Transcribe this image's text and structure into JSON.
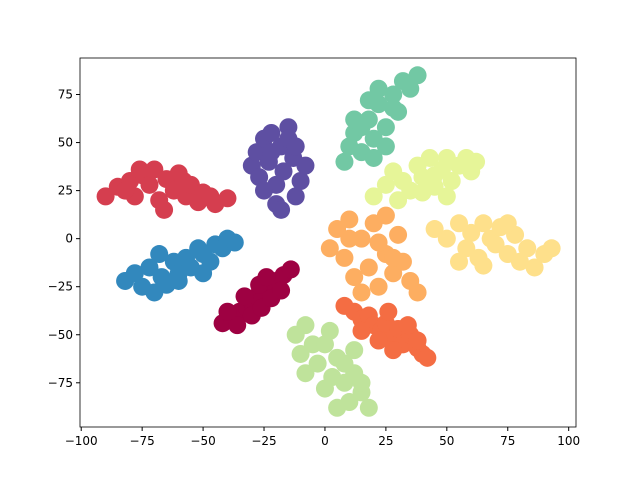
{
  "chart_data": {
    "type": "scatter",
    "xlim": [
      -100.5,
      103
    ],
    "ylim": [
      -98,
      94
    ],
    "xticks": [
      {
        "value": -100,
        "label": "−100"
      },
      {
        "value": -75,
        "label": "−75"
      },
      {
        "value": -50,
        "label": "−50"
      },
      {
        "value": -25,
        "label": "−25"
      },
      0,
      25,
      50,
      75,
      100
    ],
    "yticks": [
      {
        "value": -75,
        "label": "−75"
      },
      {
        "value": -50,
        "label": "−50"
      },
      {
        "value": -25,
        "label": "−25"
      },
      0,
      25,
      50,
      75
    ],
    "series": [
      {
        "color": "#9e0142",
        "x": [
          -42,
          -38,
          -35,
          -32,
          -30,
          -28,
          -25,
          -22,
          -20,
          -17,
          -14,
          -36,
          -30,
          -26,
          -22,
          -33,
          -27,
          -18,
          -24,
          -40
        ],
        "values": [
          -44,
          -42,
          -38,
          -36,
          -33,
          -30,
          -28,
          -25,
          -22,
          -19,
          -16,
          -45,
          -40,
          -36,
          -31,
          -30,
          -24,
          -27,
          -20,
          -38
        ]
      },
      {
        "color": "#d53e4f",
        "x": [
          -90,
          -85,
          -80,
          -78,
          -75,
          -72,
          -70,
          -68,
          -65,
          -62,
          -60,
          -57,
          -55,
          -52,
          -50,
          -47,
          -45,
          -40,
          -76,
          -66,
          -58,
          -82
        ],
        "values": [
          22,
          27,
          30,
          22,
          33,
          28,
          36,
          20,
          31,
          25,
          34,
          22,
          28,
          19,
          24,
          22,
          18,
          21,
          36,
          15,
          30,
          25
        ]
      },
      {
        "color": "#f46d43",
        "x": [
          8,
          12,
          15,
          18,
          20,
          23,
          25,
          28,
          30,
          32,
          35,
          38,
          40,
          42,
          15,
          22,
          28,
          34,
          38,
          26
        ],
        "values": [
          -35,
          -38,
          -42,
          -40,
          -45,
          -48,
          -44,
          -52,
          -47,
          -55,
          -50,
          -57,
          -60,
          -62,
          -48,
          -53,
          -58,
          -45,
          -53,
          -38
        ]
      },
      {
        "color": "#fdae61",
        "x": [
          2,
          5,
          8,
          10,
          12,
          15,
          18,
          20,
          22,
          25,
          28,
          30,
          32,
          35,
          38,
          15,
          22,
          28,
          10,
          25
        ],
        "values": [
          -5,
          5,
          -10,
          10,
          -20,
          0,
          -15,
          8,
          -25,
          -8,
          -18,
          2,
          -12,
          -22,
          -28,
          -28,
          -2,
          -10,
          0,
          12
        ]
      },
      {
        "color": "#fee08b",
        "x": [
          45,
          50,
          55,
          58,
          60,
          63,
          65,
          68,
          70,
          72,
          75,
          78,
          80,
          83,
          86,
          90,
          93,
          55,
          65,
          75
        ],
        "values": [
          5,
          0,
          8,
          -5,
          3,
          -10,
          8,
          0,
          -3,
          6,
          -8,
          2,
          -12,
          -5,
          -15,
          -8,
          -5,
          -12,
          -14,
          8
        ]
      },
      {
        "color": "#e6f598",
        "x": [
          20,
          25,
          28,
          32,
          35,
          38,
          40,
          43,
          45,
          48,
          50,
          52,
          55,
          58,
          60,
          62,
          30,
          40,
          50,
          45
        ],
        "values": [
          22,
          28,
          35,
          30,
          25,
          38,
          32,
          42,
          27,
          36,
          42,
          30,
          38,
          42,
          35,
          40,
          20,
          24,
          22,
          33
        ]
      },
      {
        "color": "#bfe39b",
        "x": [
          -12,
          -10,
          -8,
          -5,
          -3,
          0,
          2,
          5,
          8,
          10,
          12,
          15,
          18,
          -8,
          0,
          5,
          12,
          3,
          8,
          15
        ],
        "values": [
          -50,
          -60,
          -70,
          -55,
          -65,
          -78,
          -48,
          -62,
          -75,
          -85,
          -70,
          -80,
          -88,
          -45,
          -55,
          -88,
          -58,
          -72,
          -65,
          -75
        ]
      },
      {
        "color": "#72c8a4",
        "x": [
          8,
          10,
          12,
          15,
          18,
          20,
          22,
          25,
          28,
          30,
          32,
          35,
          38,
          15,
          22,
          28,
          20,
          25,
          12,
          18
        ],
        "values": [
          40,
          48,
          55,
          45,
          62,
          52,
          70,
          58,
          75,
          66,
          82,
          78,
          85,
          58,
          78,
          68,
          42,
          48,
          62,
          72
        ]
      },
      {
        "color": "#3288bd",
        "x": [
          -82,
          -78,
          -75,
          -72,
          -70,
          -67,
          -65,
          -62,
          -60,
          -57,
          -55,
          -52,
          -50,
          -47,
          -45,
          -42,
          -40,
          -37,
          -68,
          -60,
          -50
        ],
        "values": [
          -22,
          -18,
          -25,
          -15,
          -28,
          -20,
          -24,
          -12,
          -18,
          -10,
          -15,
          -5,
          -8,
          -12,
          -3,
          -5,
          0,
          -2,
          -8,
          -22,
          -18
        ]
      },
      {
        "color": "#5e4fa2",
        "x": [
          -30,
          -28,
          -27,
          -25,
          -23,
          -22,
          -20,
          -18,
          -17,
          -15,
          -13,
          -12,
          -10,
          -8,
          -25,
          -20,
          -15,
          -22,
          -18,
          -12
        ],
        "values": [
          38,
          45,
          32,
          52,
          40,
          55,
          28,
          48,
          35,
          58,
          42,
          22,
          30,
          38,
          25,
          18,
          52,
          45,
          15,
          48
        ]
      }
    ]
  }
}
